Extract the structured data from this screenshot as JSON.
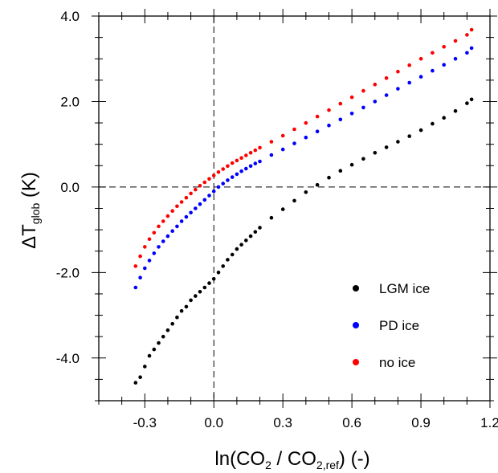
{
  "chart_data": {
    "type": "scatter",
    "title": "",
    "xlabel": {
      "prefix": "ln(CO",
      "sub1": "2",
      "mid": " / CO",
      "sub2": "2,ref",
      "suffix": ") (-)"
    },
    "ylabel": {
      "prefix": "ΔT",
      "sub": "glob",
      "suffix": " (K)"
    },
    "xlim": [
      -0.5,
      1.2
    ],
    "ylim": [
      -5.0,
      4.0
    ],
    "xticks": [
      {
        "value": -0.3,
        "label": "-0.3"
      },
      {
        "value": 0.0,
        "label": "0.0"
      },
      {
        "value": 0.3,
        "label": "0.3"
      },
      {
        "value": 0.6,
        "label": "0.6"
      },
      {
        "value": 0.9,
        "label": "0.9"
      },
      {
        "value": 1.2,
        "label": "1.2"
      }
    ],
    "xminor_step": 0.1,
    "yticks": [
      {
        "value": 4.0,
        "label": "4.0"
      },
      {
        "value": 2.0,
        "label": "2.0"
      },
      {
        "value": 0.0,
        "label": "0.0"
      },
      {
        "value": -2.0,
        "label": "-2.0"
      },
      {
        "value": -4.0,
        "label": "-4.0"
      }
    ],
    "yminor_step": 0.5,
    "reference_lines": {
      "x": 0.0,
      "y": 0.0,
      "style": "dashed"
    },
    "legend_position": "bottom-right",
    "series": [
      {
        "name": "LGM ice",
        "color": "#000000",
        "x": [
          -0.34,
          -0.32,
          -0.3,
          -0.28,
          -0.26,
          -0.24,
          -0.22,
          -0.2,
          -0.18,
          -0.16,
          -0.14,
          -0.12,
          -0.1,
          -0.08,
          -0.06,
          -0.04,
          -0.02,
          0.0,
          0.02,
          0.04,
          0.06,
          0.08,
          0.1,
          0.12,
          0.14,
          0.16,
          0.18,
          0.2,
          0.25,
          0.3,
          0.35,
          0.4,
          0.45,
          0.5,
          0.55,
          0.6,
          0.65,
          0.7,
          0.75,
          0.8,
          0.85,
          0.9,
          0.95,
          1.0,
          1.05,
          1.1,
          1.12
        ],
        "y": [
          -4.58,
          -4.45,
          -4.2,
          -3.95,
          -3.8,
          -3.65,
          -3.5,
          -3.35,
          -3.2,
          -3.05,
          -2.9,
          -2.8,
          -2.65,
          -2.55,
          -2.45,
          -2.35,
          -2.25,
          -2.15,
          -2.0,
          -1.85,
          -1.7,
          -1.58,
          -1.45,
          -1.35,
          -1.25,
          -1.15,
          -1.05,
          -0.95,
          -0.72,
          -0.52,
          -0.32,
          -0.12,
          0.05,
          0.22,
          0.38,
          0.52,
          0.66,
          0.8,
          0.93,
          1.06,
          1.19,
          1.33,
          1.48,
          1.62,
          1.78,
          1.96,
          2.05
        ]
      },
      {
        "name": "PD ice",
        "color": "#0000ff",
        "x": [
          -0.34,
          -0.32,
          -0.3,
          -0.28,
          -0.26,
          -0.24,
          -0.22,
          -0.2,
          -0.18,
          -0.16,
          -0.14,
          -0.12,
          -0.1,
          -0.08,
          -0.06,
          -0.04,
          -0.02,
          0.0,
          0.02,
          0.04,
          0.06,
          0.08,
          0.1,
          0.12,
          0.14,
          0.16,
          0.18,
          0.2,
          0.25,
          0.3,
          0.35,
          0.4,
          0.45,
          0.5,
          0.55,
          0.6,
          0.65,
          0.7,
          0.75,
          0.8,
          0.85,
          0.9,
          0.95,
          1.0,
          1.05,
          1.1,
          1.12
        ],
        "y": [
          -2.35,
          -2.12,
          -1.9,
          -1.72,
          -1.55,
          -1.4,
          -1.27,
          -1.15,
          -1.03,
          -0.92,
          -0.8,
          -0.7,
          -0.6,
          -0.5,
          -0.4,
          -0.3,
          -0.2,
          -0.1,
          0.0,
          0.08,
          0.16,
          0.23,
          0.3,
          0.37,
          0.43,
          0.49,
          0.55,
          0.6,
          0.75,
          0.88,
          1.02,
          1.16,
          1.3,
          1.44,
          1.58,
          1.72,
          1.86,
          2.0,
          2.15,
          2.3,
          2.44,
          2.58,
          2.72,
          2.86,
          3.0,
          3.14,
          3.25
        ]
      },
      {
        "name": "no ice",
        "color": "#ff0000",
        "x": [
          -0.34,
          -0.32,
          -0.3,
          -0.28,
          -0.26,
          -0.24,
          -0.22,
          -0.2,
          -0.18,
          -0.16,
          -0.14,
          -0.12,
          -0.1,
          -0.08,
          -0.06,
          -0.04,
          -0.02,
          0.0,
          0.02,
          0.04,
          0.06,
          0.08,
          0.1,
          0.12,
          0.14,
          0.16,
          0.18,
          0.2,
          0.25,
          0.3,
          0.35,
          0.4,
          0.45,
          0.5,
          0.55,
          0.6,
          0.65,
          0.7,
          0.75,
          0.8,
          0.85,
          0.9,
          0.95,
          1.0,
          1.05,
          1.1,
          1.12
        ],
        "y": [
          -1.85,
          -1.62,
          -1.4,
          -1.22,
          -1.07,
          -0.92,
          -0.8,
          -0.68,
          -0.56,
          -0.45,
          -0.35,
          -0.25,
          -0.15,
          -0.06,
          0.03,
          0.11,
          0.19,
          0.27,
          0.35,
          0.42,
          0.49,
          0.56,
          0.62,
          0.68,
          0.74,
          0.8,
          0.86,
          0.92,
          1.06,
          1.2,
          1.35,
          1.5,
          1.65,
          1.8,
          1.95,
          2.1,
          2.25,
          2.4,
          2.55,
          2.7,
          2.85,
          3.0,
          3.14,
          3.28,
          3.42,
          3.56,
          3.68
        ]
      }
    ]
  }
}
